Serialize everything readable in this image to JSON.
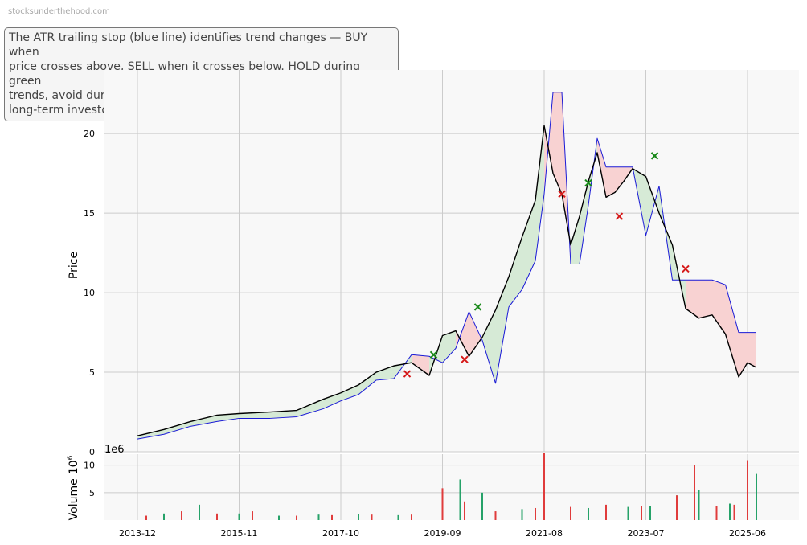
{
  "watermark": "stocksunderthehood.com",
  "annotation": "The ATR trailing stop (blue line) identifies trend changes — BUY when\nprice crosses above, SELL when it crosses below. HOLD during green\ntrends, avoid during red trends, with settings suited for medium to\nlong-term investors.",
  "colors": {
    "price": "#000000",
    "stop": "#1a1ad6",
    "green_fill": "#d6ead6",
    "red_fill": "#f8d2d2",
    "buy": "#1a8a1a",
    "sell": "#d61a1a",
    "vol_up": "#26a269",
    "vol_down": "#e03c3c",
    "grid": "#cccccc",
    "bg": "#f8f8f8"
  },
  "chart_data": [
    {
      "type": "line",
      "ylabel": "Price",
      "ylim": [
        0,
        24
      ],
      "yticks": [
        0,
        5,
        10,
        15,
        20
      ],
      "grid": true,
      "series": [
        {
          "x": [
            "2013-12",
            "2014-06",
            "2014-12",
            "2015-06",
            "2015-11",
            "2016-06",
            "2016-12",
            "2017-06",
            "2017-10",
            "2018-02",
            "2018-06",
            "2018-10",
            "2019-02",
            "2019-06",
            "2019-09",
            "2019-12",
            "2020-03",
            "2020-06",
            "2020-09",
            "2020-12",
            "2021-03",
            "2021-06",
            "2021-08",
            "2021-10",
            "2021-12",
            "2022-02",
            "2022-04",
            "2022-06",
            "2022-08",
            "2022-10",
            "2022-12",
            "2023-02",
            "2023-04",
            "2023-07",
            "2023-10",
            "2024-01",
            "2024-04",
            "2024-07",
            "2024-10",
            "2025-01",
            "2025-04",
            "2025-06",
            "2025-08"
          ],
          "values": [
            1.0,
            1.4,
            1.9,
            2.3,
            2.4,
            2.5,
            2.6,
            3.3,
            3.7,
            4.2,
            5.0,
            5.4,
            5.6,
            4.8,
            7.3,
            7.6,
            6.0,
            7.2,
            8.9,
            11.0,
            13.5,
            15.8,
            20.5,
            17.5,
            16.2,
            13.0,
            14.8,
            17.0,
            18.8,
            16.0,
            16.3,
            17.0,
            17.8,
            17.3,
            15.0,
            13.0,
            9.0,
            8.4,
            8.6,
            7.4,
            4.7,
            5.6,
            5.3
          ]
        },
        {
          "x": [
            "2013-12",
            "2014-06",
            "2014-12",
            "2015-06",
            "2015-11",
            "2016-06",
            "2016-12",
            "2017-06",
            "2017-10",
            "2018-02",
            "2018-06",
            "2018-10",
            "2019-02",
            "2019-06",
            "2019-09",
            "2019-12",
            "2020-03",
            "2020-06",
            "2020-09",
            "2020-12",
            "2021-03",
            "2021-06",
            "2021-08",
            "2021-10",
            "2021-12",
            "2022-02",
            "2022-04",
            "2022-06",
            "2022-08",
            "2022-10",
            "2022-12",
            "2023-02",
            "2023-04",
            "2023-07",
            "2023-10",
            "2024-01",
            "2024-04",
            "2024-07",
            "2024-10",
            "2025-01",
            "2025-04",
            "2025-06",
            "2025-08"
          ],
          "values": [
            0.8,
            1.1,
            1.6,
            1.9,
            2.1,
            2.1,
            2.2,
            2.7,
            3.2,
            3.6,
            4.5,
            4.6,
            6.1,
            6.0,
            5.6,
            6.5,
            8.8,
            7.0,
            4.3,
            9.1,
            10.2,
            12.0,
            16.2,
            22.6,
            22.6,
            11.8,
            11.8,
            15.5,
            19.7,
            17.9,
            17.9,
            17.9,
            17.9,
            13.6,
            16.7,
            10.8,
            10.8,
            10.8,
            10.8,
            10.5,
            7.5,
            7.5,
            7.5
          ]
        }
      ],
      "markers": [
        {
          "label": "SELL",
          "x": "2019-01",
          "y": 4.9
        },
        {
          "label": "BUY",
          "x": "2019-07",
          "y": 6.1
        },
        {
          "label": "SELL",
          "x": "2020-02",
          "y": 5.8
        },
        {
          "label": "BUY",
          "x": "2020-05",
          "y": 9.1
        },
        {
          "label": "SELL",
          "x": "2021-12",
          "y": 16.2
        },
        {
          "label": "BUY",
          "x": "2022-06",
          "y": 16.9
        },
        {
          "label": "SELL",
          "x": "2023-01",
          "y": 14.8
        },
        {
          "label": "BUY",
          "x": "2023-09",
          "y": 18.6
        },
        {
          "label": "SELL",
          "x": "2024-04",
          "y": 11.5
        }
      ]
    },
    {
      "type": "bar",
      "ylabel": "Volume",
      "ylabel_exponent": "10",
      "ylabel_exponent_power": "6",
      "offset_text": "1e6",
      "ylim": [
        0,
        12
      ],
      "yticks": [
        5,
        10
      ],
      "grid": true,
      "series": [
        {
          "name": "Up",
          "x": [
            "2014-06",
            "2015-02",
            "2015-11",
            "2016-08",
            "2017-05",
            "2018-02",
            "2018-11",
            "2019-09",
            "2020-01",
            "2020-06",
            "2021-03",
            "2021-08",
            "2022-06",
            "2023-03",
            "2023-08",
            "2024-02",
            "2024-07",
            "2025-02",
            "2025-06",
            "2025-08"
          ],
          "values": [
            1.2,
            2.8,
            1.2,
            0.8,
            1.0,
            1.1,
            0.9,
            2.0,
            7.4,
            5.0,
            2.0,
            2.4,
            2.2,
            2.4,
            2.6,
            4.5,
            5.5,
            3.0,
            6.0,
            8.4
          ]
        },
        {
          "name": "Down",
          "x": [
            "2014-02",
            "2014-10",
            "2015-06",
            "2016-02",
            "2016-12",
            "2017-08",
            "2018-05",
            "2019-02",
            "2019-09",
            "2020-02",
            "2020-09",
            "2021-06",
            "2021-08",
            "2022-02",
            "2022-10",
            "2023-06",
            "2024-02",
            "2024-06",
            "2024-11",
            "2025-03",
            "2025-06"
          ],
          "values": [
            0.8,
            1.6,
            1.2,
            1.6,
            0.8,
            0.9,
            1.0,
            1.0,
            5.8,
            3.4,
            1.6,
            2.2,
            12.2,
            2.4,
            2.8,
            2.6,
            4.5,
            10.0,
            2.5,
            2.8,
            10.9
          ]
        }
      ]
    }
  ],
  "xticks": [
    "2013-12",
    "2015-11",
    "2017-10",
    "2019-09",
    "2021-08",
    "2023-07",
    "2025-06"
  ]
}
